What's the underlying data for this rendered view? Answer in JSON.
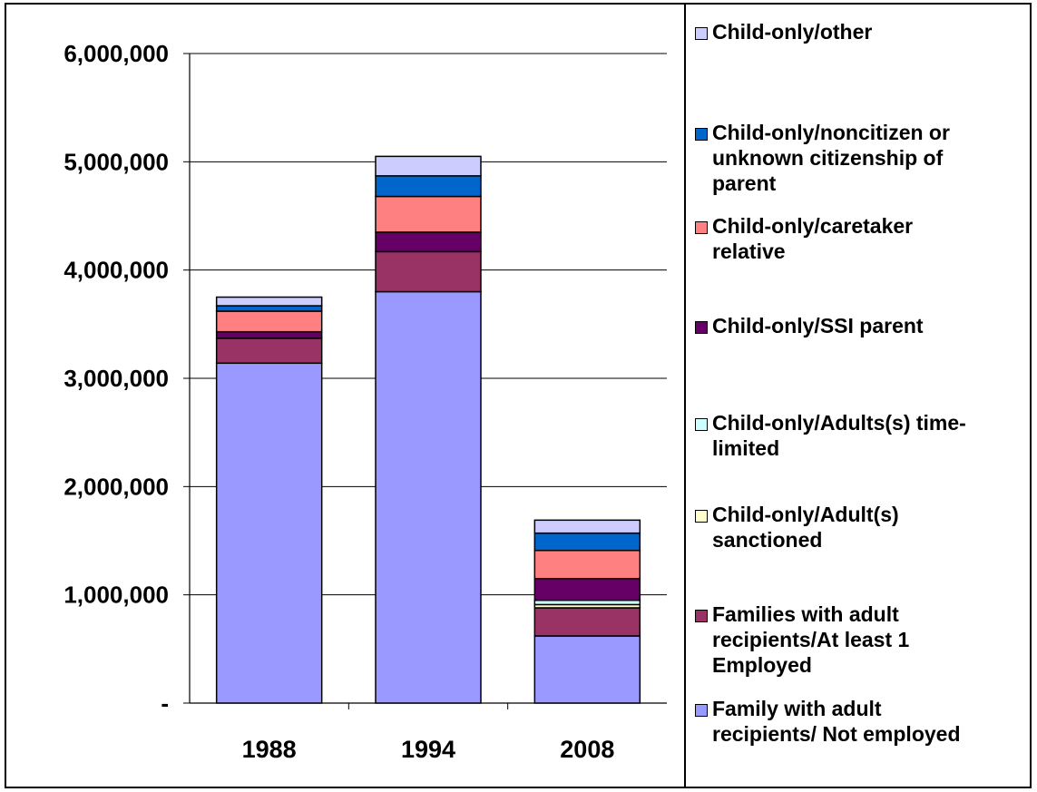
{
  "chart_data": {
    "type": "bar",
    "stacked": true,
    "categories": [
      "1988",
      "1994",
      "2008"
    ],
    "ylim": [
      0,
      6000000
    ],
    "yticks": [
      0,
      1000000,
      2000000,
      3000000,
      4000000,
      5000000,
      6000000
    ],
    "ytick_labels": [
      "-",
      "1,000,000",
      "2,000,000",
      "3,000,000",
      "4,000,000",
      "5,000,000",
      "6,000,000"
    ],
    "grid": true,
    "legend_position": "right",
    "series": [
      {
        "name": "Family with adult recipients/ Not employed",
        "color": "#9999FF",
        "values": [
          3140000,
          3800000,
          620000
        ]
      },
      {
        "name": "Families with adult recipients/At least 1 Employed",
        "color": "#993366",
        "values": [
          230000,
          370000,
          260000
        ]
      },
      {
        "name": "Child-only/Adult(s) sanctioned",
        "color": "#FFFFCC",
        "values": [
          0,
          0,
          30000
        ]
      },
      {
        "name": "Child-only/Adults(s) time-limited",
        "color": "#CCFFFF",
        "values": [
          0,
          0,
          40000
        ]
      },
      {
        "name": "Child-only/SSI parent",
        "color": "#660066",
        "values": [
          60000,
          180000,
          200000
        ]
      },
      {
        "name": "Child-only/caretaker relative",
        "color": "#FF8080",
        "values": [
          190000,
          330000,
          260000
        ]
      },
      {
        "name": "Child-only/noncitizen or unknown citizenship of parent",
        "color": "#0066CC",
        "values": [
          50000,
          190000,
          160000
        ]
      },
      {
        "name": "Child-only/other",
        "color": "#CCCCFF",
        "values": [
          80000,
          180000,
          120000
        ]
      }
    ]
  },
  "legend": {
    "items": [
      {
        "label_lines": [
          "Child-only/other"
        ],
        "color": "#CCCCFF"
      },
      {
        "label_lines": [
          "Child-only/noncitizen or",
          "unknown citizenship of",
          "parent"
        ],
        "color": "#0066CC"
      },
      {
        "label_lines": [
          "Child-only/caretaker",
          "relative"
        ],
        "color": "#FF8080"
      },
      {
        "label_lines": [
          "Child-only/SSI parent"
        ],
        "color": "#660066"
      },
      {
        "label_lines": [
          "Child-only/Adults(s) time-",
          "limited"
        ],
        "color": "#CCFFFF"
      },
      {
        "label_lines": [
          "Child-only/Adult(s)",
          "sanctioned"
        ],
        "color": "#FFFFCC"
      },
      {
        "label_lines": [
          "Families with adult",
          "recipients/At least 1",
          "Employed"
        ],
        "color": "#993366"
      },
      {
        "label_lines": [
          "Family with adult",
          "recipients/ Not employed"
        ],
        "color": "#9999FF"
      }
    ]
  }
}
